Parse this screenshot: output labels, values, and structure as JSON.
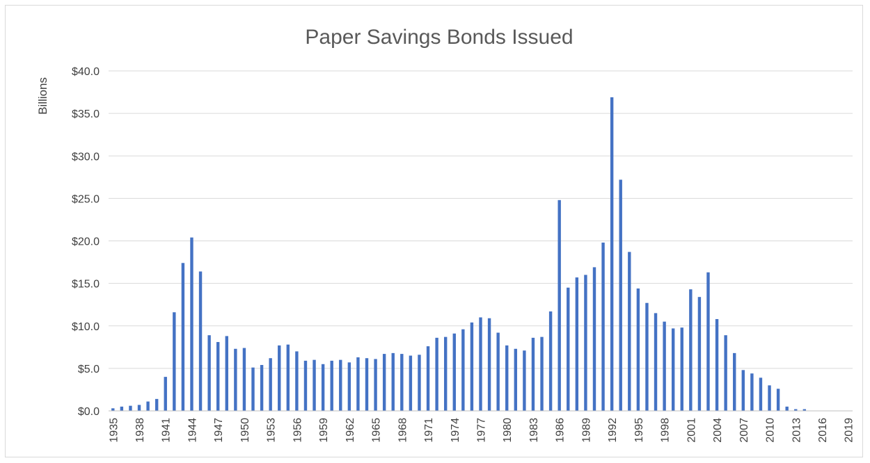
{
  "chart_data": {
    "type": "bar",
    "title": "Paper Savings Bonds Issued",
    "xlabel": "",
    "ylabel": "Billions",
    "ylim": [
      0,
      40
    ],
    "y_ticks": [
      "$0.0",
      "$5.0",
      "$10.0",
      "$15.0",
      "$20.0",
      "$25.0",
      "$30.0",
      "$35.0",
      "$40.0"
    ],
    "x_tick_labels": [
      "1935",
      "1938",
      "1941",
      "1944",
      "1947",
      "1950",
      "1953",
      "1956",
      "1959",
      "1962",
      "1965",
      "1968",
      "1971",
      "1974",
      "1977",
      "1980",
      "1983",
      "1986",
      "1989",
      "1992",
      "1995",
      "1998",
      "2001",
      "2004",
      "2007",
      "2010",
      "2013",
      "2016",
      "2019"
    ],
    "grid": true,
    "legend": "none",
    "bar_color": "#4472c4",
    "categories": [
      1935,
      1936,
      1937,
      1938,
      1939,
      1940,
      1941,
      1942,
      1943,
      1944,
      1945,
      1946,
      1947,
      1948,
      1949,
      1950,
      1951,
      1952,
      1953,
      1954,
      1955,
      1956,
      1957,
      1958,
      1959,
      1960,
      1961,
      1962,
      1963,
      1964,
      1965,
      1966,
      1967,
      1968,
      1969,
      1970,
      1971,
      1972,
      1973,
      1974,
      1975,
      1976,
      1977,
      1978,
      1979,
      1980,
      1981,
      1982,
      1983,
      1984,
      1985,
      1986,
      1987,
      1988,
      1989,
      1990,
      1991,
      1992,
      1993,
      1994,
      1995,
      1996,
      1997,
      1998,
      1999,
      2000,
      2001,
      2002,
      2003,
      2004,
      2005,
      2006,
      2007,
      2008,
      2009,
      2010,
      2011,
      2012,
      2013,
      2014,
      2015,
      2016,
      2017,
      2018,
      2019
    ],
    "values": [
      0.3,
      0.5,
      0.6,
      0.7,
      1.1,
      1.4,
      4.0,
      11.6,
      17.4,
      20.4,
      16.4,
      8.9,
      8.1,
      8.8,
      7.3,
      7.4,
      5.1,
      5.4,
      6.2,
      7.7,
      7.8,
      7.0,
      5.9,
      6.0,
      5.5,
      5.9,
      6.0,
      5.7,
      6.3,
      6.2,
      6.1,
      6.7,
      6.8,
      6.7,
      6.5,
      6.6,
      7.6,
      8.6,
      8.7,
      9.1,
      9.6,
      10.4,
      11.0,
      10.9,
      9.2,
      7.7,
      7.3,
      7.1,
      8.6,
      8.7,
      11.7,
      24.8,
      14.5,
      15.7,
      16.0,
      16.9,
      19.8,
      36.9,
      27.2,
      18.7,
      14.4,
      12.7,
      11.5,
      10.5,
      9.7,
      9.8,
      14.3,
      13.4,
      16.3,
      10.8,
      8.9,
      6.8,
      4.8,
      4.4,
      3.9,
      3.0,
      2.6,
      0.5,
      0.2,
      0.2,
      0.0,
      0.0,
      0.0,
      0.0,
      0.0
    ]
  }
}
